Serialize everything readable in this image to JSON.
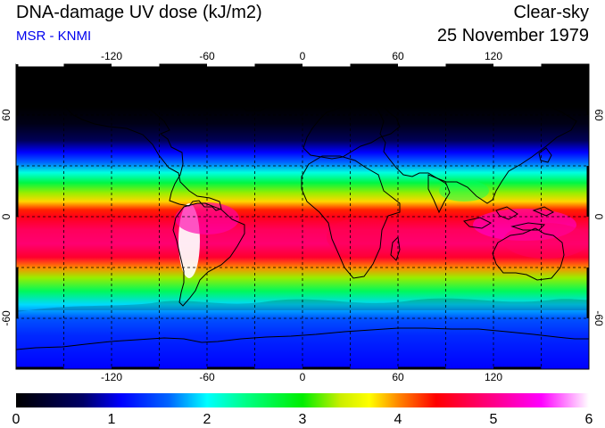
{
  "header": {
    "title": "DNA-damage UV dose (kJ/m2)",
    "source": "MSR - KNMI",
    "condition": "Clear-sky",
    "date": "25 November 1979"
  },
  "map": {
    "projection": "equirectangular",
    "lon_range": [
      -180,
      180
    ],
    "lat_range": [
      -90,
      90
    ],
    "lon_ticks": [
      -120,
      -60,
      0,
      60,
      120
    ],
    "lat_ticks": [
      60,
      0,
      -60
    ],
    "grid_lines": "dashed",
    "icon": "world-map"
  },
  "colorbar": {
    "min": 0,
    "max": 6,
    "labels": [
      "0",
      "1",
      "2",
      "3",
      "4",
      "5",
      "6"
    ],
    "stops": [
      {
        "value": 0.0,
        "color": "#000000"
      },
      {
        "value": 0.7,
        "color": "#000066"
      },
      {
        "value": 1.1,
        "color": "#0000ff"
      },
      {
        "value": 1.6,
        "color": "#0066ff"
      },
      {
        "value": 2.0,
        "color": "#00ffff"
      },
      {
        "value": 2.4,
        "color": "#00ff88"
      },
      {
        "value": 3.0,
        "color": "#00ee00"
      },
      {
        "value": 3.4,
        "color": "#ccee00"
      },
      {
        "value": 3.7,
        "color": "#ffff00"
      },
      {
        "value": 4.0,
        "color": "#ff8800"
      },
      {
        "value": 4.4,
        "color": "#ff0000"
      },
      {
        "value": 5.0,
        "color": "#ff0088"
      },
      {
        "value": 5.5,
        "color": "#ff00ff"
      },
      {
        "value": 6.0,
        "color": "#ffffff"
      }
    ]
  },
  "field_profile": [
    {
      "lat": 90,
      "dose": 0.0
    },
    {
      "lat": 65,
      "dose": 0.0
    },
    {
      "lat": 55,
      "dose": 0.15
    },
    {
      "lat": 45,
      "dose": 0.6
    },
    {
      "lat": 38,
      "dose": 1.1
    },
    {
      "lat": 32,
      "dose": 1.6
    },
    {
      "lat": 26,
      "dose": 2.1
    },
    {
      "lat": 20,
      "dose": 2.7
    },
    {
      "lat": 14,
      "dose": 3.3
    },
    {
      "lat": 9,
      "dose": 3.8
    },
    {
      "lat": 4,
      "dose": 4.3
    },
    {
      "lat": 0,
      "dose": 4.5
    },
    {
      "lat": -8,
      "dose": 4.8
    },
    {
      "lat": -16,
      "dose": 4.9
    },
    {
      "lat": -24,
      "dose": 4.6
    },
    {
      "lat": -30,
      "dose": 4.0
    },
    {
      "lat": -36,
      "dose": 3.3
    },
    {
      "lat": -44,
      "dose": 2.6
    },
    {
      "lat": -52,
      "dose": 1.9
    },
    {
      "lat": -60,
      "dose": 1.5
    },
    {
      "lat": -70,
      "dose": 1.3
    },
    {
      "lat": -80,
      "dose": 1.2
    },
    {
      "lat": -90,
      "dose": 1.1
    }
  ]
}
